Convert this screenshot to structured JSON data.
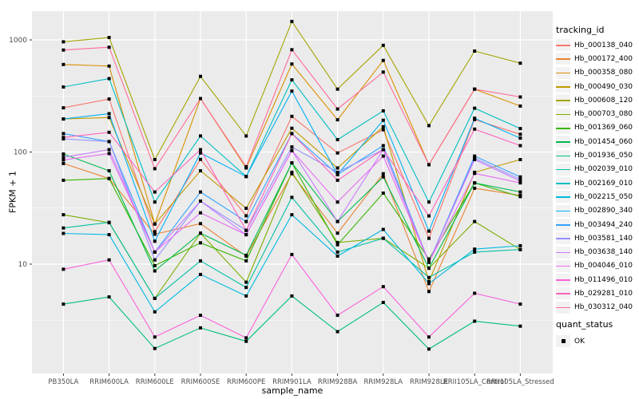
{
  "figure": {
    "type_hint": "ggplot2 line+point plot, log10 y scale"
  },
  "style": {
    "panel_bg": "#EBEBEB",
    "grid_major": "#FFFFFF",
    "grid_minor": "#FFFFFF",
    "tick_mark_color": "#333333",
    "tick_label_color": "#4D4D4D",
    "point_color": "#000000",
    "legend_key_bg": "#F2F2F2"
  },
  "chart_data": {
    "type": "line",
    "title": "",
    "xlabel": "sample_name",
    "ylabel": "FPKM + 1",
    "y_scale": "log10",
    "y_ticks": [
      10,
      100,
      1000
    ],
    "y_minor_ticks": [
      3.162,
      31.62,
      316.2
    ],
    "ylim": [
      1.05,
      1800
    ],
    "grid": true,
    "point_shape": "filled-square",
    "categories": [
      "PB350LA",
      "RRIM600LA",
      "RRIM600LE",
      "RRIM600SE",
      "RRIM600PE",
      "RRIM901LA",
      "RRIM928BA",
      "RRIM928LA",
      "RRIM928LE",
      "RRII105LA_Control",
      "RRII105LA_Stressed"
    ],
    "legend": {
      "series_title": "tracking_id",
      "shape_title": "quant_status",
      "shape_label": "OK",
      "position": "right"
    },
    "series": [
      {
        "name": "Hb_000138_040",
        "color": "#F8766D",
        "values": [
          248,
          297,
          19.5,
          86,
          27,
          208,
          98,
          158,
          17,
          195,
          144
        ]
      },
      {
        "name": "Hb_000172_400",
        "color": "#EA8331",
        "values": [
          79,
          58,
          18.5,
          23,
          11.8,
          64,
          18.9,
          64,
          5.7,
          47.5,
          41
        ]
      },
      {
        "name": "Hb_000358_080",
        "color": "#D89000",
        "values": [
          604,
          584,
          22.8,
          300,
          72,
          610,
          194,
          656,
          77,
          364,
          257
        ]
      },
      {
        "name": "Hb_000490_030",
        "color": "#C09B00",
        "values": [
          197,
          203,
          22.8,
          68,
          31.5,
          163,
          72,
          168,
          7,
          66,
          85.6
        ]
      },
      {
        "name": "Hb_000608_120",
        "color": "#A3A500",
        "values": [
          962,
          1050,
          85.6,
          473,
          139,
          1460,
          364,
          894,
          172,
          795,
          620
        ]
      },
      {
        "name": "Hb_000703_080",
        "color": "#7CAE00",
        "values": [
          27.6,
          23.4,
          4.95,
          18.9,
          6.9,
          66,
          15.6,
          17,
          9.2,
          24,
          13.5
        ]
      },
      {
        "name": "Hb_001369_060",
        "color": "#39B600",
        "values": [
          56,
          58,
          9.7,
          15.5,
          10.7,
          80,
          14.9,
          43,
          11.1,
          53,
          40
        ]
      },
      {
        "name": "Hb_001454_060",
        "color": "#00BB4E",
        "values": [
          96,
          68,
          8.7,
          18.9,
          12,
          80,
          24,
          60,
          9.2,
          53,
          44
        ]
      },
      {
        "name": "Hb_001936_050",
        "color": "#00BF7D",
        "values": [
          4.4,
          5.1,
          1.77,
          2.7,
          2.05,
          5.2,
          2.5,
          4.55,
          1.75,
          3.1,
          2.8
        ]
      },
      {
        "name": "Hb_002039_010",
        "color": "#00C1A3",
        "values": [
          21,
          23.6,
          4.95,
          10.7,
          6.2,
          39.4,
          12.8,
          17,
          7.6,
          12.8,
          13.5
        ]
      },
      {
        "name": "Hb_002169_010",
        "color": "#00BFC4",
        "values": [
          380,
          452,
          35.8,
          139,
          60.5,
          440,
          129,
          233,
          35.8,
          246,
          162
        ]
      },
      {
        "name": "Hb_002215_050",
        "color": "#00BAE0",
        "values": [
          18.8,
          18.3,
          3.75,
          8.1,
          5.2,
          27.6,
          11.8,
          20.4,
          6.7,
          13.6,
          14.6
        ]
      },
      {
        "name": "Hb_002890_340",
        "color": "#00B0F6",
        "values": [
          197,
          220,
          16,
          98,
          60.5,
          349,
          63,
          192,
          19.7,
          200,
          133
        ]
      },
      {
        "name": "Hb_003494_240",
        "color": "#35A2FF",
        "values": [
          146,
          124,
          12.8,
          44,
          24,
          146,
          63,
          114,
          10.4,
          92,
          60
        ]
      },
      {
        "name": "Hb_003581_140",
        "color": "#9590FF",
        "values": [
          131,
          124,
          10.9,
          36.5,
          20,
          111,
          66,
          105,
          10.4,
          88,
          57
        ]
      },
      {
        "name": "Hb_003638_140",
        "color": "#C77CFF",
        "values": [
          89.6,
          105,
          12.8,
          36.5,
          18.3,
          103,
          24,
          105,
          10.4,
          85.6,
          55
        ]
      },
      {
        "name": "Hb_004046_010",
        "color": "#E76BF3",
        "values": [
          85,
          97,
          12.8,
          28.7,
          18.3,
          103,
          35.8,
          92,
          10.4,
          64.5,
          53
        ]
      },
      {
        "name": "Hb_011496_010",
        "color": "#FA62DB",
        "values": [
          9,
          10.9,
          2.24,
          3.5,
          2.2,
          12.2,
          3.5,
          6.3,
          2.24,
          5.5,
          4.4
        ]
      },
      {
        "name": "Hb_029281_010",
        "color": "#FF62BC",
        "values": [
          135,
          150,
          44,
          105,
          20,
          146,
          56,
          105,
          26.9,
          160,
          114
        ]
      },
      {
        "name": "Hb_030312_040",
        "color": "#FF6A98",
        "values": [
          812,
          860,
          71,
          300,
          74,
          818,
          242,
          517,
          77,
          364,
          310
        ]
      }
    ]
  }
}
